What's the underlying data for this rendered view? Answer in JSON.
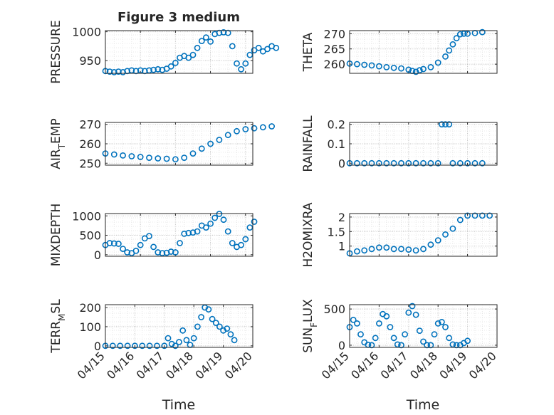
{
  "figure": {
    "title": "Figure 3 medium",
    "xlabel": "Time"
  },
  "colors": {
    "marker": "#0072BD",
    "axis": "#262626",
    "grid": "#c6c6c6",
    "minor_grid": "#e2e2e2"
  },
  "date_ticks": [
    "04/15",
    "04/16",
    "04/17",
    "04/18",
    "04/19",
    "04/20"
  ],
  "chart_data": [
    {
      "type": "scatter",
      "ylabel": "PRESSURE",
      "yticks": [
        "950",
        "1000"
      ],
      "ylim": [
        928,
        1002
      ],
      "xlim": [
        "04/15",
        "04/19 05:00"
      ],
      "points": [
        [
          "04/15 00:00",
          932
        ],
        [
          "04/15 03:00",
          931
        ],
        [
          "04/15 06:00",
          930
        ],
        [
          "04/15 09:00",
          931
        ],
        [
          "04/15 12:00",
          930
        ],
        [
          "04/15 15:00",
          932
        ],
        [
          "04/15 18:00",
          933
        ],
        [
          "04/15 21:00",
          932
        ],
        [
          "04/16 00:00",
          933
        ],
        [
          "04/16 03:00",
          932
        ],
        [
          "04/16 06:00",
          933
        ],
        [
          "04/16 09:00",
          934
        ],
        [
          "04/16 12:00",
          935
        ],
        [
          "04/16 15:00",
          934
        ],
        [
          "04/16 18:00",
          936
        ],
        [
          "04/16 21:00",
          940
        ],
        [
          "04/17 00:00",
          946
        ],
        [
          "04/17 03:00",
          955
        ],
        [
          "04/17 06:00",
          958
        ],
        [
          "04/17 09:00",
          955
        ],
        [
          "04/17 12:00",
          960
        ],
        [
          "04/17 15:00",
          972
        ],
        [
          "04/17 18:00",
          984
        ],
        [
          "04/17 21:00",
          990
        ],
        [
          "04/18 00:00",
          983
        ],
        [
          "04/18 03:00",
          996
        ],
        [
          "04/18 06:00",
          998
        ],
        [
          "04/18 09:00",
          999
        ],
        [
          "04/18 12:00",
          998
        ],
        [
          "04/18 15:00",
          975
        ],
        [
          "04/18 18:00",
          945
        ],
        [
          "04/18 21:00",
          935
        ],
        [
          "04/19 00:00",
          945
        ],
        [
          "04/19 03:00",
          960
        ],
        [
          "04/19 06:00",
          968
        ],
        [
          "04/19 09:00",
          972
        ],
        [
          "04/19 12:00",
          966
        ],
        [
          "04/19 15:00",
          970
        ],
        [
          "04/19 18:00",
          975
        ],
        [
          "04/19 21:00",
          972
        ]
      ]
    },
    {
      "type": "scatter",
      "ylabel": "THETA",
      "yticks": [
        "260",
        "265",
        "270"
      ],
      "ylim": [
        257,
        271
      ],
      "xlim": [
        "04/15",
        "04/20"
      ],
      "points": [
        [
          "04/15 00:00",
          260.2
        ],
        [
          "04/15 06:00",
          260
        ],
        [
          "04/15 12:00",
          259.8
        ],
        [
          "04/15 18:00",
          259.6
        ],
        [
          "04/16 00:00",
          259.3
        ],
        [
          "04/16 06:00",
          259
        ],
        [
          "04/16 12:00",
          258.8
        ],
        [
          "04/16 18:00",
          258.6
        ],
        [
          "04/17 00:00",
          258.2
        ],
        [
          "04/17 03:00",
          257.8
        ],
        [
          "04/17 06:00",
          257.5
        ],
        [
          "04/17 09:00",
          258
        ],
        [
          "04/17 12:00",
          258.4
        ],
        [
          "04/17 18:00",
          259
        ],
        [
          "04/18 00:00",
          260.5
        ],
        [
          "04/18 06:00",
          262.5
        ],
        [
          "04/18 09:00",
          264.5
        ],
        [
          "04/18 12:00",
          266.5
        ],
        [
          "04/18 15:00",
          268.5
        ],
        [
          "04/18 18:00",
          269.8
        ],
        [
          "04/18 21:00",
          270
        ],
        [
          "04/19 00:00",
          270
        ],
        [
          "04/19 06:00",
          270.2
        ],
        [
          "04/19 12:00",
          270.5
        ]
      ]
    },
    {
      "type": "scatter",
      "ylabel": "AIR_TEMP",
      "yticks": [
        "250",
        "260",
        "270"
      ],
      "ylim": [
        249,
        271
      ],
      "xlim": [
        "04/15",
        "04/19 05:00"
      ],
      "points": [
        [
          "04/15 00:00",
          255
        ],
        [
          "04/15 06:00",
          254.5
        ],
        [
          "04/15 12:00",
          254
        ],
        [
          "04/15 18:00",
          253.6
        ],
        [
          "04/16 00:00",
          253.2
        ],
        [
          "04/16 06:00",
          252.8
        ],
        [
          "04/16 12:00",
          252.5
        ],
        [
          "04/16 18:00",
          252.3
        ],
        [
          "04/17 00:00",
          252
        ],
        [
          "04/17 06:00",
          252.8
        ],
        [
          "04/17 12:00",
          255
        ],
        [
          "04/17 18:00",
          257.5
        ],
        [
          "04/18 00:00",
          260
        ],
        [
          "04/18 06:00",
          262
        ],
        [
          "04/18 12:00",
          264.5
        ],
        [
          "04/18 18:00",
          266.5
        ],
        [
          "04/19 00:00",
          267.5
        ],
        [
          "04/19 06:00",
          268
        ],
        [
          "04/19 12:00",
          268.5
        ],
        [
          "04/19 18:00",
          269
        ]
      ]
    },
    {
      "type": "scatter",
      "ylabel": "RAINFALL",
      "yticks": [
        "0",
        "0.1",
        "0.2"
      ],
      "ylim": [
        -0.01,
        0.21
      ],
      "xlim": [
        "04/15",
        "04/20"
      ],
      "points": [
        [
          "04/15 00:00",
          0
        ],
        [
          "04/15 06:00",
          0
        ],
        [
          "04/15 12:00",
          0
        ],
        [
          "04/15 18:00",
          0
        ],
        [
          "04/16 00:00",
          0
        ],
        [
          "04/16 06:00",
          0
        ],
        [
          "04/16 12:00",
          0
        ],
        [
          "04/16 18:00",
          0
        ],
        [
          "04/17 00:00",
          0
        ],
        [
          "04/17 06:00",
          0
        ],
        [
          "04/17 12:00",
          0
        ],
        [
          "04/17 18:00",
          0
        ],
        [
          "04/18 00:00",
          0
        ],
        [
          "04/18 03:00",
          0.2
        ],
        [
          "04/18 06:00",
          0.2
        ],
        [
          "04/18 09:00",
          0.2
        ],
        [
          "04/18 12:00",
          0
        ],
        [
          "04/18 18:00",
          0
        ],
        [
          "04/19 00:00",
          0
        ],
        [
          "04/19 06:00",
          0
        ],
        [
          "04/19 12:00",
          0
        ]
      ]
    },
    {
      "type": "scatter",
      "ylabel": "MIXDEPTH",
      "yticks": [
        "0",
        "500",
        "1000"
      ],
      "ylim": [
        -40,
        1060
      ],
      "xlim": [
        "04/15",
        "04/19 05:00"
      ],
      "points": [
        [
          "04/15 00:00",
          250
        ],
        [
          "04/15 03:00",
          300
        ],
        [
          "04/15 06:00",
          290
        ],
        [
          "04/15 09:00",
          280
        ],
        [
          "04/15 12:00",
          150
        ],
        [
          "04/15 15:00",
          60
        ],
        [
          "04/15 18:00",
          40
        ],
        [
          "04/15 21:00",
          100
        ],
        [
          "04/16 00:00",
          250
        ],
        [
          "04/16 03:00",
          420
        ],
        [
          "04/16 06:00",
          480
        ],
        [
          "04/16 09:00",
          200
        ],
        [
          "04/16 12:00",
          60
        ],
        [
          "04/16 15:00",
          40
        ],
        [
          "04/16 18:00",
          50
        ],
        [
          "04/16 21:00",
          80
        ],
        [
          "04/17 00:00",
          60
        ],
        [
          "04/17 03:00",
          300
        ],
        [
          "04/17 06:00",
          540
        ],
        [
          "04/17 09:00",
          560
        ],
        [
          "04/17 12:00",
          570
        ],
        [
          "04/17 15:00",
          600
        ],
        [
          "04/17 18:00",
          750
        ],
        [
          "04/17 21:00",
          700
        ],
        [
          "04/18 00:00",
          800
        ],
        [
          "04/18 03:00",
          950
        ],
        [
          "04/18 06:00",
          1050
        ],
        [
          "04/18 09:00",
          900
        ],
        [
          "04/18 12:00",
          600
        ],
        [
          "04/18 15:00",
          300
        ],
        [
          "04/18 18:00",
          200
        ],
        [
          "04/18 21:00",
          250
        ],
        [
          "04/19 00:00",
          400
        ],
        [
          "04/19 03:00",
          700
        ],
        [
          "04/19 06:00",
          850
        ]
      ]
    },
    {
      "type": "scatter",
      "ylabel": "H2OMIXRA",
      "yticks": [
        "1",
        "1.5",
        "2"
      ],
      "ylim": [
        0.65,
        2.12
      ],
      "xlim": [
        "04/15",
        "04/20"
      ],
      "points": [
        [
          "04/15 00:00",
          0.75
        ],
        [
          "04/15 06:00",
          0.82
        ],
        [
          "04/15 12:00",
          0.85
        ],
        [
          "04/15 18:00",
          0.9
        ],
        [
          "04/16 00:00",
          0.95
        ],
        [
          "04/16 06:00",
          0.95
        ],
        [
          "04/16 12:00",
          0.9
        ],
        [
          "04/16 18:00",
          0.9
        ],
        [
          "04/17 00:00",
          0.88
        ],
        [
          "04/17 06:00",
          0.85
        ],
        [
          "04/17 12:00",
          0.9
        ],
        [
          "04/17 18:00",
          1.05
        ],
        [
          "04/18 00:00",
          1.2
        ],
        [
          "04/18 06:00",
          1.4
        ],
        [
          "04/18 12:00",
          1.6
        ],
        [
          "04/18 18:00",
          1.9
        ],
        [
          "04/19 00:00",
          2.05
        ],
        [
          "04/19 06:00",
          2.05
        ],
        [
          "04/19 12:00",
          2.05
        ],
        [
          "04/19 18:00",
          2.05
        ]
      ]
    },
    {
      "type": "scatter",
      "ylabel": "TERR_MSL",
      "yticks": [
        "0",
        "100",
        "200"
      ],
      "ylim": [
        -8,
        215
      ],
      "xlim": [
        "04/15",
        "04/20"
      ],
      "points": [
        [
          "04/15 00:00",
          0
        ],
        [
          "04/15 06:00",
          0
        ],
        [
          "04/15 12:00",
          0
        ],
        [
          "04/15 18:00",
          0
        ],
        [
          "04/16 00:00",
          0
        ],
        [
          "04/16 06:00",
          0
        ],
        [
          "04/16 12:00",
          0
        ],
        [
          "04/16 18:00",
          0
        ],
        [
          "04/17 00:00",
          0
        ],
        [
          "04/17 03:00",
          40
        ],
        [
          "04/17 06:00",
          10
        ],
        [
          "04/17 09:00",
          0
        ],
        [
          "04/17 12:00",
          20
        ],
        [
          "04/17 15:00",
          80
        ],
        [
          "04/17 18:00",
          30
        ],
        [
          "04/17 21:00",
          5
        ],
        [
          "04/18 00:00",
          40
        ],
        [
          "04/18 03:00",
          100
        ],
        [
          "04/18 06:00",
          150
        ],
        [
          "04/18 09:00",
          200
        ],
        [
          "04/18 12:00",
          190
        ],
        [
          "04/18 15:00",
          140
        ],
        [
          "04/18 18:00",
          120
        ],
        [
          "04/18 21:00",
          100
        ],
        [
          "04/19 00:00",
          80
        ],
        [
          "04/19 03:00",
          90
        ],
        [
          "04/19 06:00",
          60
        ],
        [
          "04/19 09:00",
          30
        ]
      ]
    },
    {
      "type": "scatter",
      "ylabel": "SUN_FLUX",
      "yticks": [
        "0",
        "500"
      ],
      "ylim": [
        -30,
        560
      ],
      "xlim": [
        "04/15",
        "04/20"
      ],
      "points": [
        [
          "04/15 00:00",
          250
        ],
        [
          "04/15 03:00",
          350
        ],
        [
          "04/15 06:00",
          300
        ],
        [
          "04/15 09:00",
          150
        ],
        [
          "04/15 12:00",
          40
        ],
        [
          "04/15 15:00",
          5
        ],
        [
          "04/15 18:00",
          0
        ],
        [
          "04/15 21:00",
          100
        ],
        [
          "04/16 00:00",
          300
        ],
        [
          "04/16 03:00",
          430
        ],
        [
          "04/16 06:00",
          400
        ],
        [
          "04/16 09:00",
          250
        ],
        [
          "04/16 12:00",
          100
        ],
        [
          "04/16 15:00",
          10
        ],
        [
          "04/16 18:00",
          0
        ],
        [
          "04/16 21:00",
          150
        ],
        [
          "04/17 00:00",
          450
        ],
        [
          "04/17 03:00",
          540
        ],
        [
          "04/17 06:00",
          420
        ],
        [
          "04/17 09:00",
          200
        ],
        [
          "04/17 12:00",
          50
        ],
        [
          "04/17 15:00",
          0
        ],
        [
          "04/17 18:00",
          0
        ],
        [
          "04/17 21:00",
          150
        ],
        [
          "04/18 00:00",
          300
        ],
        [
          "04/18 03:00",
          320
        ],
        [
          "04/18 06:00",
          250
        ],
        [
          "04/18 09:00",
          100
        ],
        [
          "04/18 12:00",
          10
        ],
        [
          "04/18 15:00",
          0
        ],
        [
          "04/18 18:00",
          0
        ],
        [
          "04/18 21:00",
          30
        ],
        [
          "04/19 00:00",
          60
        ]
      ]
    }
  ]
}
